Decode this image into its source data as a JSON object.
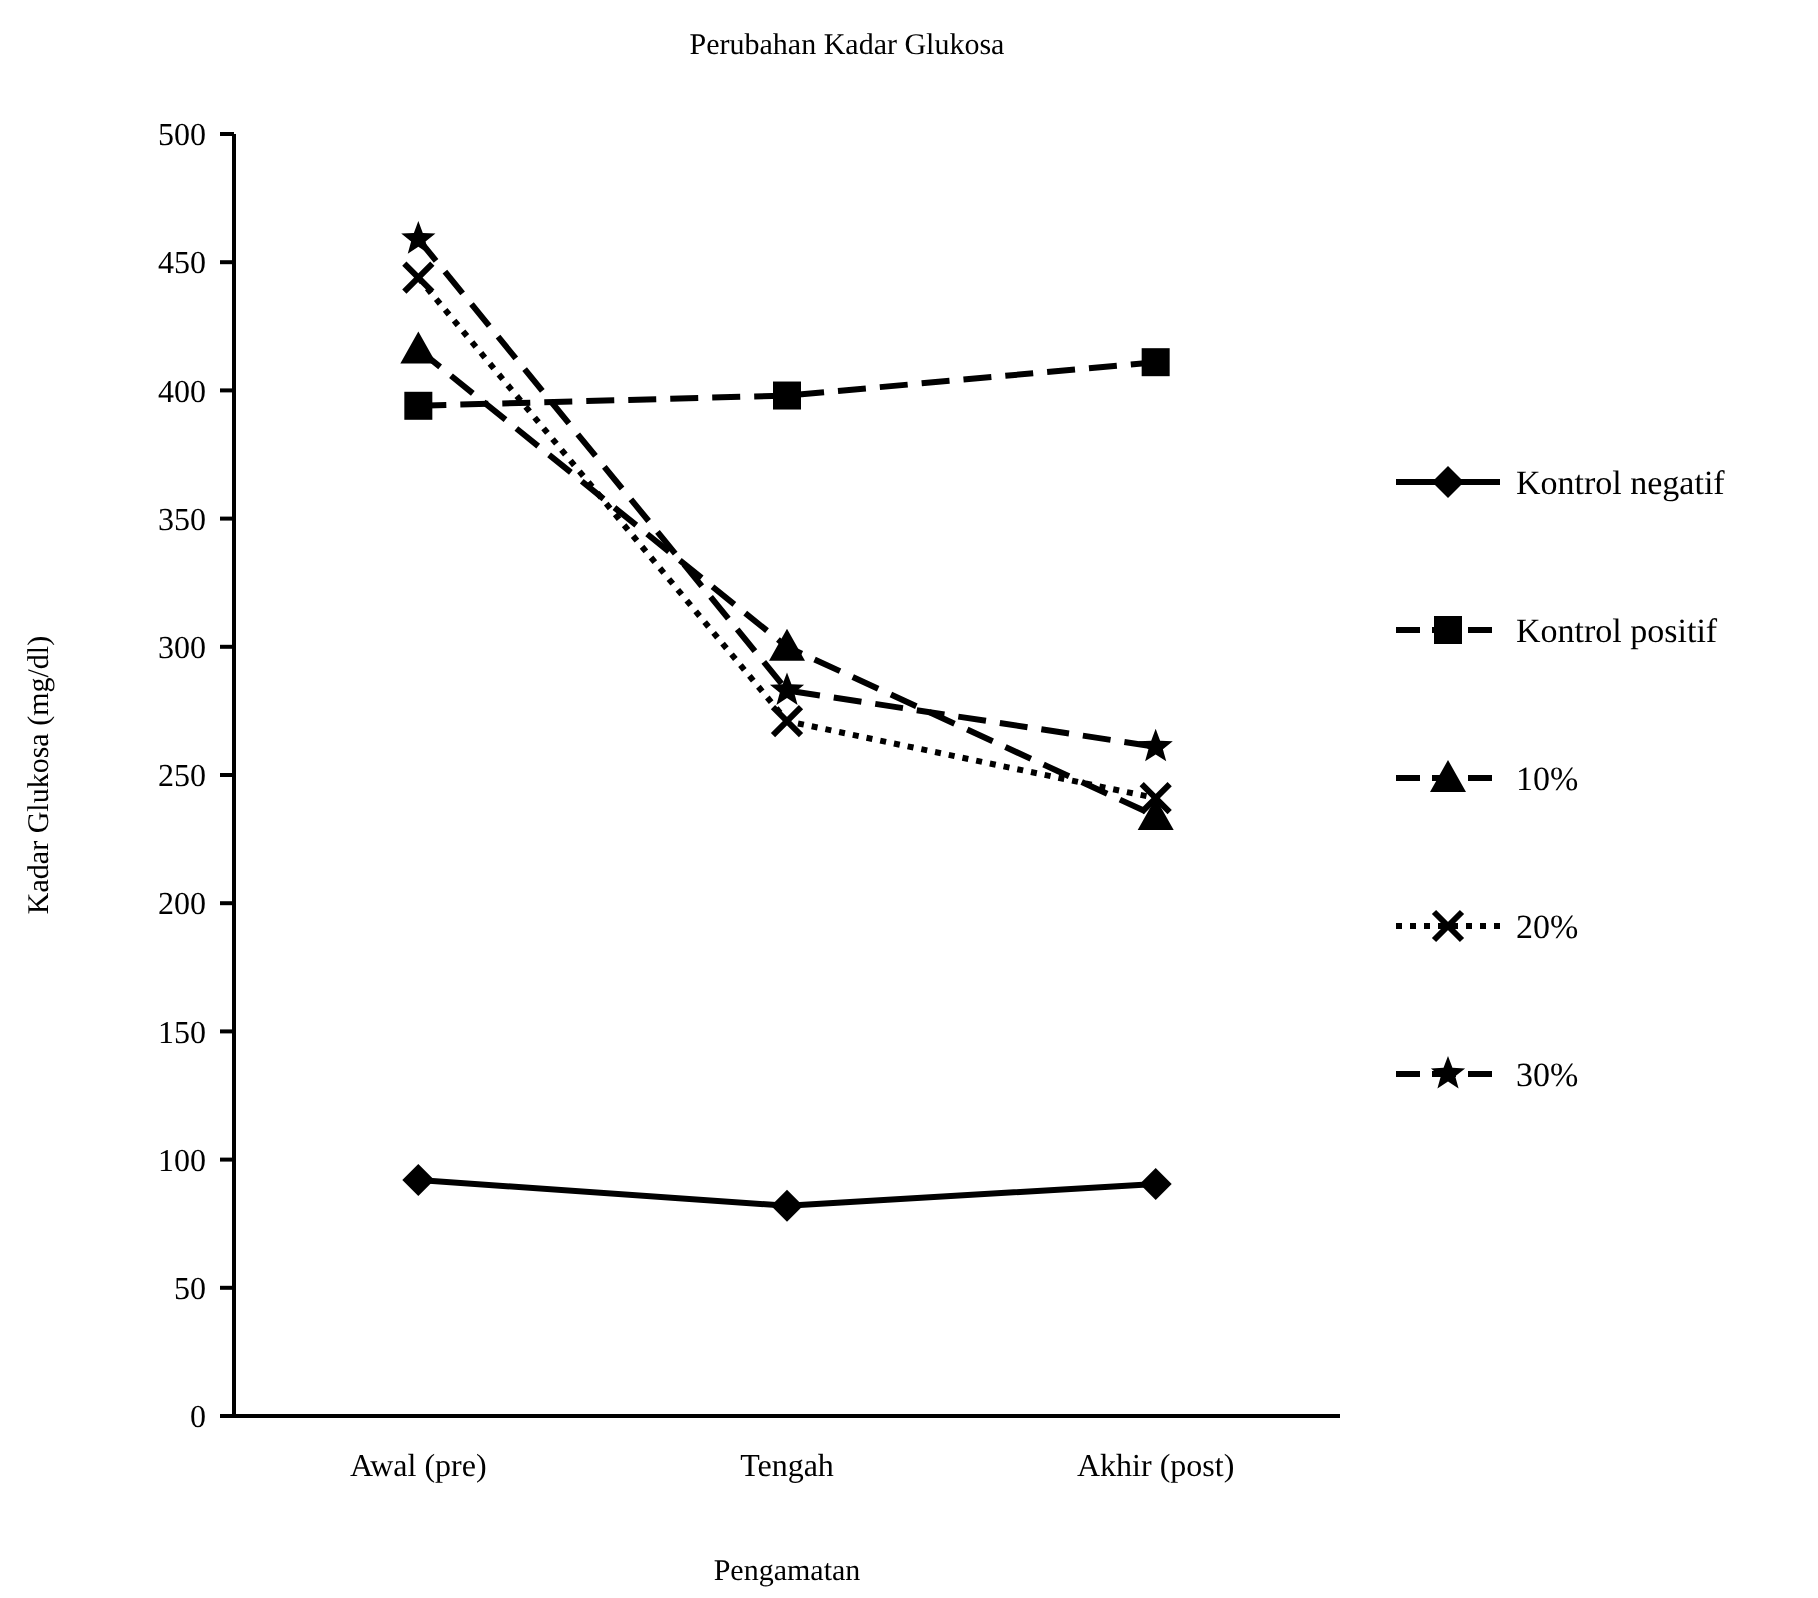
{
  "chart_data": {
    "type": "line",
    "title": "Perubahan Kadar Glukosa",
    "xlabel": "Pengamatan",
    "ylabel": "Kadar Glukosa (mg/dl)",
    "categories": [
      "Awal (pre)",
      "Tengah",
      "Akhir (post)"
    ],
    "ylim": [
      0,
      500
    ],
    "yticks": [
      0,
      50,
      100,
      150,
      200,
      250,
      300,
      350,
      400,
      450,
      500
    ],
    "grid": false,
    "legend": "right",
    "series": [
      {
        "name": "Kontrol negatif",
        "color": "#000000",
        "values": [
          92,
          82,
          90.5
        ],
        "marker": "diamond",
        "line_style": "solid"
      },
      {
        "name": "Kontrol positif",
        "color": "#000000",
        "values": [
          394,
          398,
          411
        ],
        "marker": "square",
        "line_style": "dashed"
      },
      {
        "name": "10%",
        "color": "#000000",
        "values": [
          416,
          300,
          234
        ],
        "marker": "triangle",
        "line_style": "dashed"
      },
      {
        "name": "20%",
        "color": "#000000",
        "values": [
          444,
          271,
          241
        ],
        "marker": "cross",
        "line_style": "dotted"
      },
      {
        "name": "30%",
        "color": "#000000",
        "values": [
          459,
          283,
          261
        ],
        "marker": "star",
        "line_style": "dashed"
      }
    ]
  }
}
